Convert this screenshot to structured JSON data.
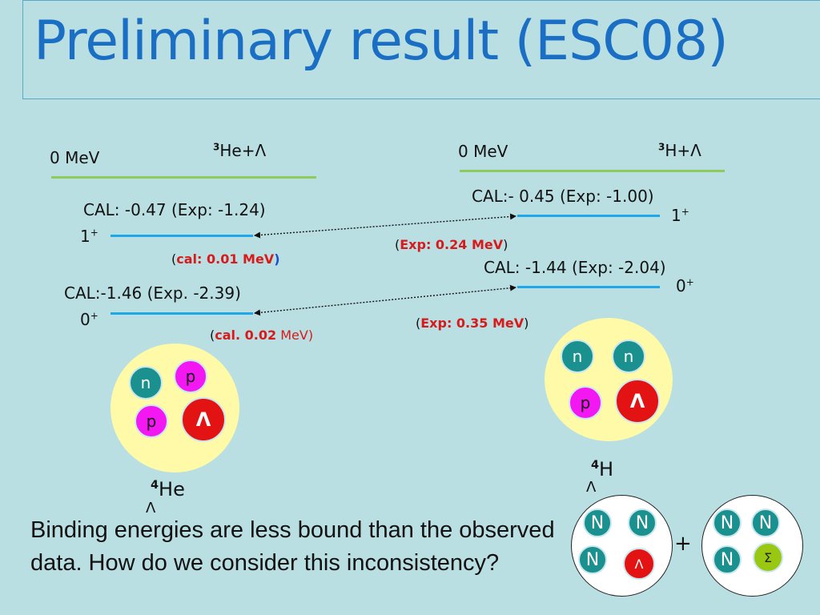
{
  "title": "Preliminary result (ESC08)",
  "left": {
    "zero_label": "0 MeV",
    "system": "He+Λ",
    "system_sup": "3",
    "level1_cal": "CAL: -0.47 (Exp: -1.24)",
    "level1_state": "1",
    "level1_state_sup": "+",
    "level1_gap_open": "(",
    "level1_gap": "cal: 0.01 MeV",
    "level1_gap_close": ")",
    "level0_cal": "CAL:-1.46 (Exp. -2.39)",
    "level0_state": "0",
    "level0_state_sup": "+",
    "level0_gap_open": "(",
    "level0_gap_bold": "cal. 0.02",
    "level0_gap_rest": " MeV)",
    "nucleus": {
      "n": "n",
      "p1": "p",
      "p2": "p",
      "lambda": "Λ"
    },
    "label_sup": "4",
    "label": "He",
    "label_sub": "Λ"
  },
  "right": {
    "zero_label": "0 MeV",
    "system": "H+Λ",
    "system_sup": "3",
    "level1_cal": "CAL:- 0.45 (Exp: -1.00)",
    "level1_state": "1",
    "level1_state_sup": "+",
    "level1_gap_open": "(",
    "level1_gap": "Exp: 0.24 MeV",
    "level1_gap_close": ")",
    "level0_cal": "CAL: -1.44 (Exp: -2.04)",
    "level0_state": "0",
    "level0_state_sup": "+",
    "level0_gap_open": "(",
    "level0_gap": "Exp: 0.35 MeV",
    "level0_gap_close": ")",
    "nucleus": {
      "n1": "n",
      "n2": "n",
      "p": "p",
      "lambda": "Λ"
    },
    "label_sup": "4",
    "label": "H",
    "label_sub": "Λ"
  },
  "mixing": {
    "c1": {
      "n1": "N",
      "n2": "N",
      "n3": "N",
      "lambda": "Λ"
    },
    "plus": "+",
    "c2": {
      "n1": "N",
      "n2": "N",
      "n3": "N",
      "sigma": "Σ"
    }
  },
  "body_text": "Binding energies are less bound than the observed data. How do we consider this inconsistency?",
  "colors": {
    "background": "#b9dfe3",
    "title": "#1a6fc4",
    "green_line": "#8dcb5a",
    "blue_line": "#1ea8e8",
    "red_text": "#d81a1a"
  }
}
